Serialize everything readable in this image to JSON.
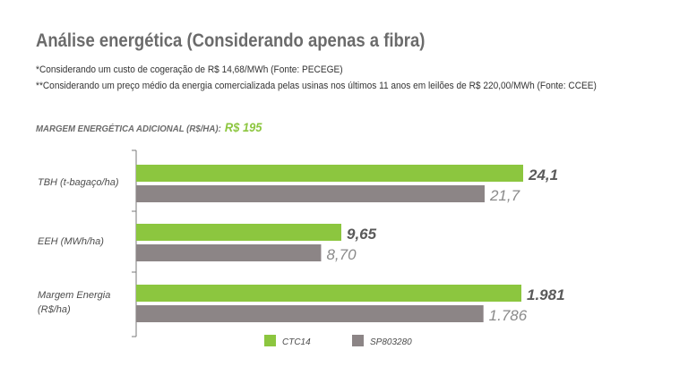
{
  "title": "Análise energética (Considerando apenas a fibra)",
  "notes": [
    "*Considerando um custo de cogeração de R$ 14,68/MWh (Fonte: PECEGE)",
    "**Considerando um preço médio da energia comercializada pelas usinas nos últimos 11 anos em leilões de R$ 220,00/MWh (Fonte: CCEE)"
  ],
  "margin": {
    "label": "MARGEM ENERGÉTICA ADICIONAL (R$/HA):",
    "value": "R$ 195"
  },
  "colors": {
    "primary": "#8cc63f",
    "secondary": "#8c8586",
    "axis": "#7a7a7a"
  },
  "chart_data": {
    "type": "bar",
    "orientation": "horizontal",
    "categories": [
      [
        "TBH (t-bagaço/ha)"
      ],
      [
        "EEH (MWh/ha)"
      ],
      [
        "Margem Energia",
        "(R$/ha)"
      ]
    ],
    "series": [
      {
        "name": "CTC14",
        "color": "#8cc63f",
        "values": [
          24.1,
          9.65,
          1981
        ],
        "labels": [
          "24,1",
          "9,65",
          "1.981"
        ]
      },
      {
        "name": "SP803280",
        "color": "#8c8586",
        "values": [
          21.7,
          8.7,
          1786
        ],
        "labels": [
          "21,7",
          "8,70",
          "1.786"
        ]
      }
    ],
    "grid": false,
    "legend_position": "bottom"
  }
}
